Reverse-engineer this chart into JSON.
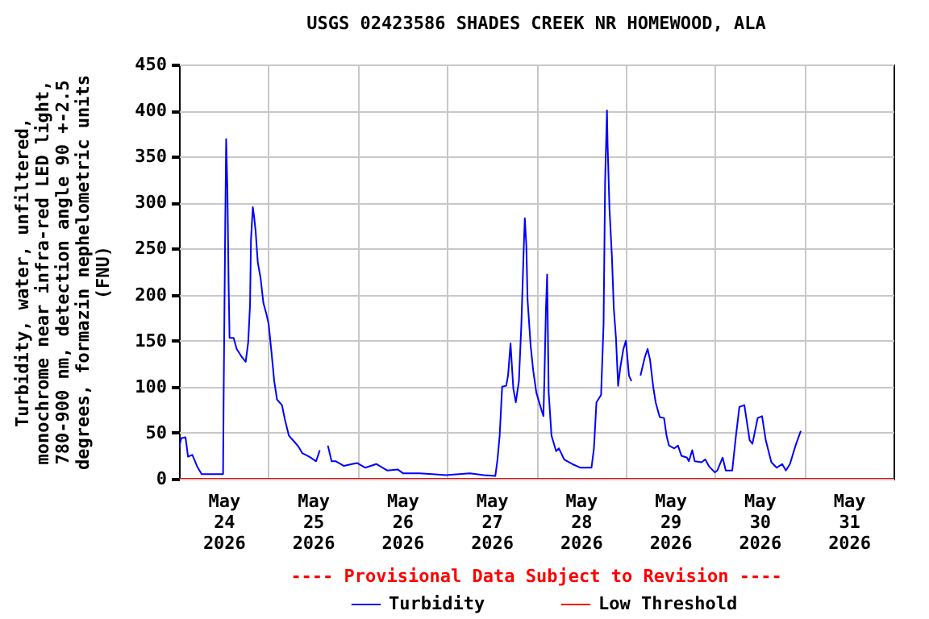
{
  "chart_data": {
    "type": "line",
    "title": "USGS 02423586 SHADES CREEK NR HOMEWOOD, ALA",
    "ylabel": "Turbidity, water, unfiltered, monochrome near infra-red LED light, 780-900 nm, detection angle 90 +-2.5 degrees, formazin nephelometric units (FNU)",
    "annotations": [
      "---- Provisional Data Subject to Revision ----"
    ],
    "xlim": [
      "2026-05-24T00:00",
      "2026-06-01T00:00"
    ],
    "xticks": [
      {
        "value": "2026-05-24T12:00",
        "label": "May 24 2026"
      },
      {
        "value": "2026-05-25T00:00",
        "label": null
      },
      {
        "value": "2026-05-25T12:00",
        "label": "May 25 2026"
      },
      {
        "value": "2026-05-26T00:00",
        "label": null
      },
      {
        "value": "2026-05-26T12:00",
        "label": "May 26 2026"
      },
      {
        "value": "2026-05-27T00:00",
        "label": null
      },
      {
        "value": "2026-05-27T12:00",
        "label": "May 27 2026"
      },
      {
        "value": "2026-05-28T00:00",
        "label": null
      },
      {
        "value": "2026-05-28T12:00",
        "label": "May 28 2026"
      },
      {
        "value": "2026-05-29T00:00",
        "label": null
      },
      {
        "value": "2026-05-29T12:00",
        "label": "May 29 2026"
      },
      {
        "value": "2026-05-30T00:00",
        "label": null
      },
      {
        "value": "2026-05-30T12:00",
        "label": "May 30 2026"
      },
      {
        "value": "2026-05-31T00:00",
        "label": null
      },
      {
        "value": "2026-05-31T12:00",
        "label": "May 31 2026"
      }
    ],
    "ylim": [
      0,
      450
    ],
    "yticks": [
      0,
      50,
      100,
      150,
      200,
      250,
      300,
      350,
      400,
      450
    ],
    "grid": true,
    "legend": "bottom",
    "series": [
      {
        "name": "Turbidity",
        "color": "#0000ff",
        "x": [
          "2026-05-24T00:00",
          "2026-05-24T00:35",
          "2026-05-24T01:45",
          "2026-05-24T02:25",
          "2026-05-24T03:35",
          "2026-05-24T04:55",
          "2026-05-24T06:05",
          "2026-05-24T08:15",
          "2026-05-24T11:50",
          "2026-05-24T12:00",
          "2026-05-24T12:25",
          "2026-05-24T12:40",
          "2026-05-24T13:00",
          "2026-05-24T13:20",
          "2026-05-24T13:35",
          "2026-05-24T14:40",
          "2026-05-24T15:30",
          "2026-05-24T16:55",
          "2026-05-24T17:55",
          "2026-05-24T18:35",
          "2026-05-24T19:05",
          "2026-05-24T19:20",
          "2026-05-24T19:50",
          "2026-05-24T20:10",
          "2026-05-24T20:35",
          "2026-05-24T21:10",
          "2026-05-24T21:55",
          "2026-05-24T22:40",
          "2026-05-24T23:25",
          "2026-05-25T00:05",
          "2026-05-25T00:50",
          "2026-05-25T01:35",
          "2026-05-25T02:20",
          "2026-05-25T03:40",
          "2026-05-25T04:25",
          "2026-05-25T05:30",
          "2026-05-25T06:35",
          "2026-05-25T08:05",
          "2026-05-25T09:05",
          "2026-05-25T11:00",
          "2026-05-25T12:50",
          "2026-05-25T13:50",
          "2026-05-25T15:00",
          "2026-05-25T16:00",
          "2026-05-25T17:00",
          "2026-05-25T18:10",
          "2026-05-25T20:20",
          "2026-05-25T22:30",
          "2026-05-25T23:55",
          "2026-05-26T02:05",
          "2026-05-26T05:00",
          "2026-05-26T07:55",
          "2026-05-26T10:50",
          "2026-05-26T12:10",
          "2026-05-26T16:35",
          "2026-05-26T20:05",
          "2026-05-26T23:40",
          "2026-05-27T06:10",
          "2026-05-27T09:55",
          "2026-05-27T13:00",
          "2026-05-27T13:35",
          "2026-05-27T14:10",
          "2026-05-27T14:50",
          "2026-05-27T15:55",
          "2026-05-27T16:25",
          "2026-05-27T17:05",
          "2026-05-27T17:50",
          "2026-05-27T18:30",
          "2026-05-27T19:20",
          "2026-05-27T20:00",
          "2026-05-27T20:35",
          "2026-05-27T20:55",
          "2026-05-27T21:20",
          "2026-05-27T21:40",
          "2026-05-27T22:30",
          "2026-05-27T23:10",
          "2026-05-28T00:00",
          "2026-05-28T01:00",
          "2026-05-28T01:55",
          "2026-05-28T02:10",
          "2026-05-28T02:35",
          "2026-05-28T02:55",
          "2026-05-28T03:20",
          "2026-05-28T04:05",
          "2026-05-28T05:20",
          "2026-05-28T06:05",
          "2026-05-28T07:30",
          "2026-05-28T09:40",
          "2026-05-28T11:55",
          "2026-05-28T14:50",
          "2026-05-28T15:30",
          "2026-05-28T16:10",
          "2026-05-28T17:25",
          "2026-05-28T18:05",
          "2026-05-28T18:30",
          "2026-05-28T19:00",
          "2026-05-28T19:10",
          "2026-05-28T19:40",
          "2026-05-28T20:20",
          "2026-05-28T20:50",
          "2026-05-28T21:25",
          "2026-05-28T22:00",
          "2026-05-28T22:35",
          "2026-05-28T23:25",
          "2026-05-29T00:05",
          "2026-05-29T00:55",
          "2026-05-29T01:35",
          "2026-05-29T02:30",
          "2026-05-29T04:00",
          "2026-05-29T05:10",
          "2026-05-29T05:55",
          "2026-05-29T06:35",
          "2026-05-29T07:25",
          "2026-05-29T08:05",
          "2026-05-29T09:10",
          "2026-05-29T10:20",
          "2026-05-29T11:00",
          "2026-05-29T11:40",
          "2026-05-29T13:05",
          "2026-05-29T14:05",
          "2026-05-29T15:00",
          "2026-05-29T16:30",
          "2026-05-29T17:00",
          "2026-05-29T17:55",
          "2026-05-29T18:35",
          "2026-05-29T20:25",
          "2026-05-29T21:25",
          "2026-05-29T22:30",
          "2026-05-30T00:00",
          "2026-05-30T00:40",
          "2026-05-30T02:05",
          "2026-05-30T02:55",
          "2026-05-30T04:40",
          "2026-05-30T05:40",
          "2026-05-30T06:35",
          "2026-05-30T07:55",
          "2026-05-30T09:20",
          "2026-05-30T10:05",
          "2026-05-30T11:30",
          "2026-05-30T12:40",
          "2026-05-30T13:40",
          "2026-05-30T15:10",
          "2026-05-30T16:35",
          "2026-05-30T18:05",
          "2026-05-30T19:05",
          "2026-05-30T20:10",
          "2026-05-30T21:40",
          "2026-05-30T23:05"
        ],
        "values": [
          33,
          44,
          45,
          24,
          26,
          13,
          5,
          5,
          5,
          94,
          276,
          369,
          315,
          209,
          153,
          153,
          141,
          132,
          127,
          148,
          189,
          259,
          295,
          285,
          269,
          235,
          218,
          191,
          180,
          168,
          138,
          106,
          86,
          80,
          65,
          47,
          42,
          35,
          28,
          24,
          19,
          31,
          null,
          36,
          19,
          19,
          14,
          16,
          17,
          12,
          16,
          9,
          10,
          6,
          6,
          5,
          4,
          6,
          4,
          3,
          21,
          47,
          100,
          101,
          112,
          147,
          98,
          83,
          106,
          168,
          244,
          283,
          253,
          194,
          144,
          118,
          94,
          80,
          68,
          106,
          182,
          222,
          94,
          47,
          30,
          33,
          21,
          16,
          12,
          12,
          33,
          83,
          91,
          168,
          323,
          400,
          364,
          294,
          241,
          185,
          153,
          101,
          121,
          141,
          150,
          112,
          106,
          null,
          112,
          132,
          141,
          129,
          100,
          83,
          67,
          66,
          47,
          36,
          33,
          36,
          25,
          23,
          19,
          31,
          19,
          18,
          21,
          13,
          7,
          9,
          23,
          9,
          9,
          47,
          78,
          80,
          42,
          38,
          66,
          68,
          42,
          18,
          12,
          16,
          9,
          16,
          36,
          52
        ]
      },
      {
        "name": "Low Threshold",
        "color": "#ff0000",
        "type": "line",
        "x": [
          "2026-05-24T00:00",
          "2026-06-01T00:00"
        ],
        "values": [
          0,
          0
        ]
      }
    ]
  }
}
